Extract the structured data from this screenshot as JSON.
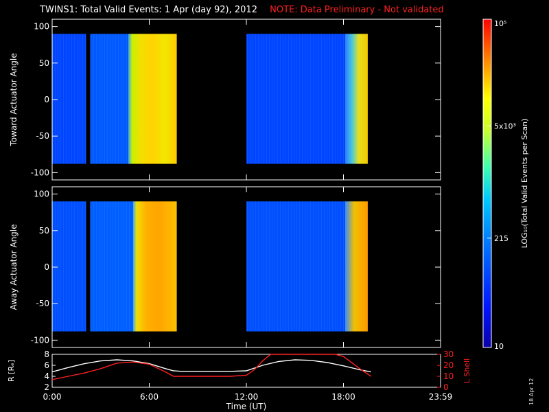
{
  "title": {
    "main": "TWINS1: Total Valid Events:  1 Apr (day  92), 2012",
    "note": "NOTE: Data Preliminary - Not validated"
  },
  "side_date": "18 Apr 12",
  "colors": {
    "background": "#000000",
    "axes": "#ffffff",
    "r_line": "#ffffff",
    "lshell_line": "#ff2020",
    "note_text": "#ff2020"
  },
  "chart_data": [
    {
      "type": "heatmap",
      "panel": "toward",
      "ylabel": "Toward Actuator Angle",
      "xlim": [
        0,
        24
      ],
      "ylim": [
        -110,
        110
      ],
      "yticks": [
        100,
        50,
        0,
        -50,
        -100
      ],
      "ytick_labels": [
        "100",
        "50",
        "0",
        "-50",
        "-100"
      ],
      "data_angle_range": [
        -88,
        90
      ],
      "segments": [
        {
          "t_start": 0.0,
          "t_end": 2.1,
          "level": 0.22
        },
        {
          "t_start": 2.35,
          "t_end": 4.7,
          "level": 0.26
        },
        {
          "t_start": 4.7,
          "t_end": 7.7,
          "level": 0.78
        },
        {
          "t_start": 12.0,
          "t_end": 18.1,
          "level": 0.22
        },
        {
          "t_start": 18.1,
          "t_end": 19.5,
          "level": 0.7
        }
      ]
    },
    {
      "type": "heatmap",
      "panel": "away",
      "ylabel": "Away Actuator Angle",
      "xlim": [
        0,
        24
      ],
      "ylim": [
        -110,
        110
      ],
      "yticks": [
        100,
        50,
        0,
        -50,
        -100
      ],
      "ytick_labels": [
        "100",
        "50",
        "0",
        "-50",
        "-100"
      ],
      "data_angle_range": [
        -88,
        90
      ],
      "segments": [
        {
          "t_start": 0.0,
          "t_end": 2.1,
          "level": 0.24
        },
        {
          "t_start": 2.35,
          "t_end": 5.0,
          "level": 0.27
        },
        {
          "t_start": 5.0,
          "t_end": 7.7,
          "level": 0.85
        },
        {
          "t_start": 12.0,
          "t_end": 18.1,
          "level": 0.24
        },
        {
          "t_start": 18.1,
          "t_end": 19.5,
          "level": 0.8
        }
      ]
    },
    {
      "type": "line",
      "panel": "orbit",
      "xlabel": "Time (UT)",
      "xlim": [
        0,
        24
      ],
      "xticks": [
        0,
        6,
        12,
        18,
        24
      ],
      "xtick_labels": [
        "0:00",
        "6:00",
        "12:00",
        "18:00",
        "23:59"
      ],
      "left_axis": {
        "label": "R [Rₑ]",
        "ylim": [
          2,
          8
        ],
        "ticks": [
          2,
          4,
          6,
          8
        ],
        "tick_labels": [
          "2",
          "4",
          "6",
          "8"
        ]
      },
      "right_axis": {
        "label": "L Shell",
        "ylim": [
          0,
          30
        ],
        "ticks": [
          0,
          10,
          20,
          30
        ],
        "tick_labels": [
          "0",
          "10",
          "20",
          "30"
        ]
      },
      "series": [
        {
          "axis": "left",
          "x": [
            0,
            1,
            2,
            3,
            4,
            5,
            6,
            7,
            7.5,
            8,
            9,
            10,
            11,
            12,
            13,
            14,
            15,
            16,
            17,
            18,
            19,
            19.7
          ],
          "y": [
            4.8,
            5.6,
            6.3,
            6.8,
            7.0,
            6.8,
            6.3,
            5.4,
            5.0,
            4.9,
            4.9,
            4.9,
            4.9,
            5.0,
            6.0,
            6.7,
            7.0,
            6.9,
            6.5,
            5.9,
            5.2,
            4.8
          ]
        },
        {
          "axis": "right",
          "x": [
            0,
            1,
            2,
            3,
            4,
            5,
            6,
            7,
            7.5,
            8,
            9,
            10,
            11,
            12,
            12.5,
            13,
            13.5,
            17.5,
            18,
            19,
            19.7
          ],
          "y": [
            7,
            10,
            13,
            17,
            22,
            23,
            21,
            14,
            10,
            10,
            10,
            10,
            10,
            11,
            16,
            24,
            32,
            32,
            28,
            17,
            10
          ]
        }
      ]
    },
    {
      "type": "heatmap",
      "panel": "colorbar",
      "label": "LOG₁₀(Total Valid Events per Scan)",
      "scale": "log",
      "range": [
        10,
        100000
      ],
      "ticks": [
        100000,
        5000,
        215,
        10
      ],
      "tick_labels": [
        "10⁵",
        "5x10³",
        "215",
        "10"
      ]
    }
  ]
}
